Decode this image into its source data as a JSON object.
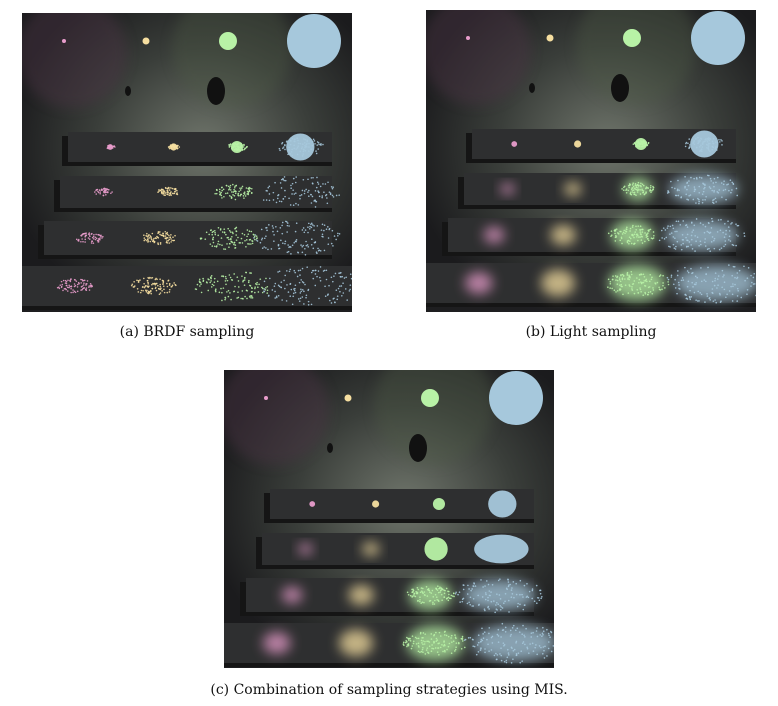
{
  "figure": {
    "panels": [
      {
        "id": "a",
        "caption": "(a) BRDF sampling",
        "mode": "brdf"
      },
      {
        "id": "b",
        "caption": "(b) Light sampling",
        "mode": "light"
      },
      {
        "id": "c",
        "caption": "(c) Combination of sampling strategies using MIS.",
        "mode": "mis"
      }
    ],
    "light_colors": [
      "#e89ccb",
      "#f6dfa0",
      "#b8f2a6",
      "#a6c8dc"
    ]
  }
}
